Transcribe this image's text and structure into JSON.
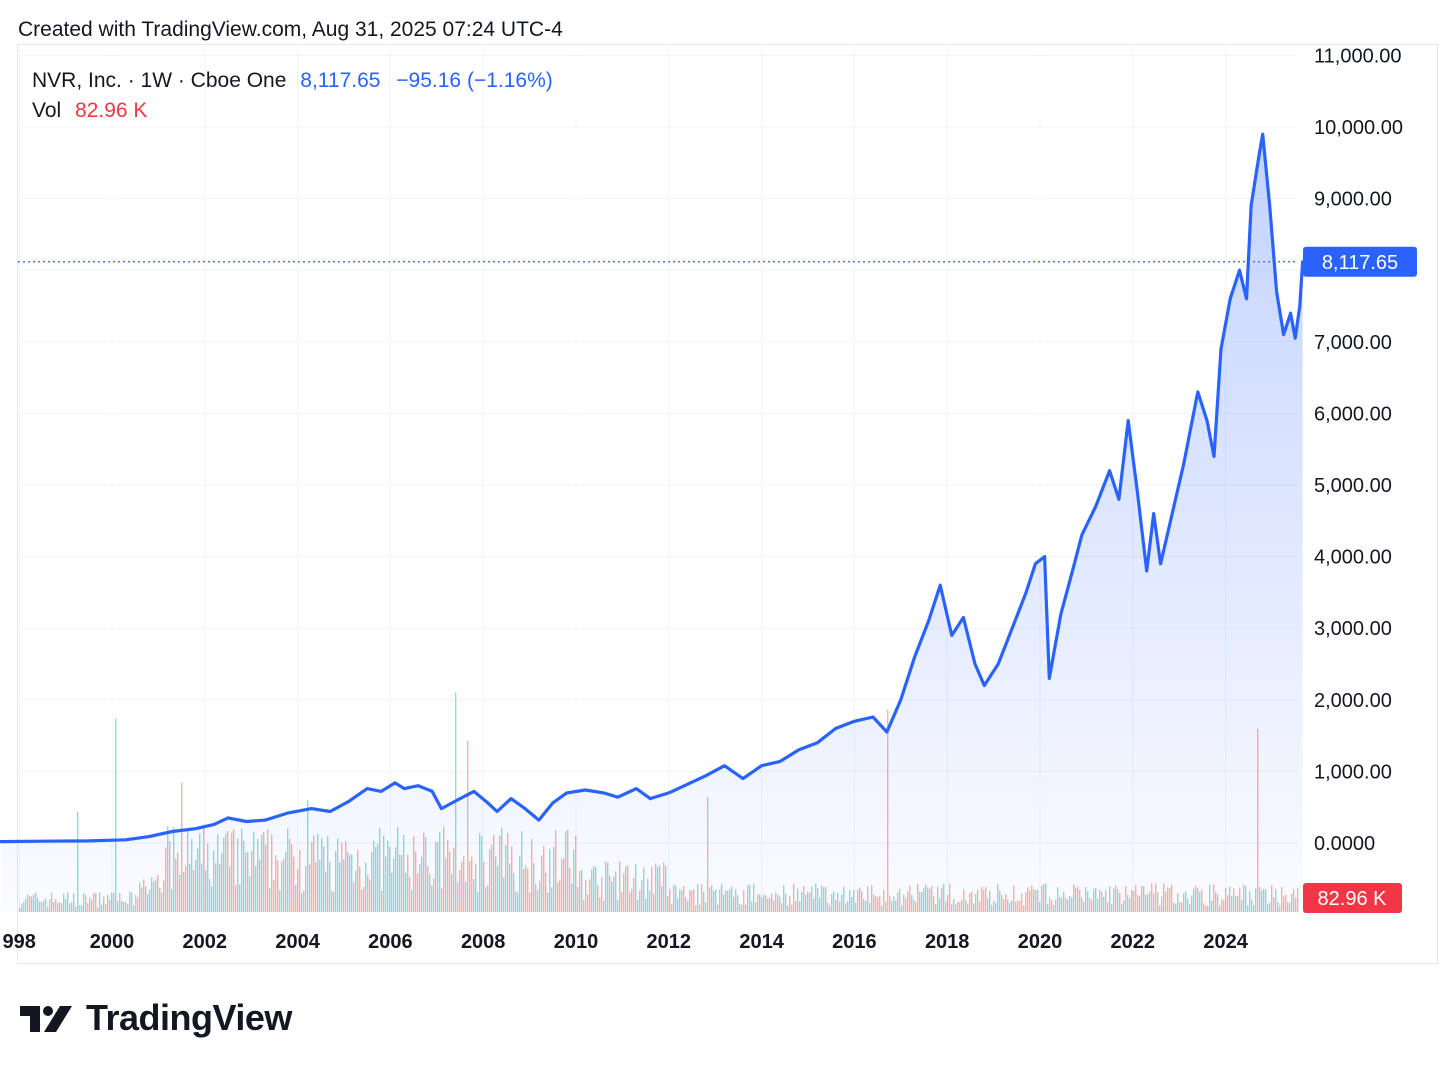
{
  "header": {
    "created_text": "Created with TradingView.com, Aug 31, 2025 07:24 UTC-4"
  },
  "legend": {
    "symbol": "NVR, Inc. · 1W · Cboe One",
    "last_price": "8,117.65",
    "change": "−95.16 (−1.16%)",
    "vol_label": "Vol",
    "vol_value": "82.96 K"
  },
  "brand": {
    "name": "TradingView"
  },
  "colors": {
    "line": "#2962ff",
    "vol_up": "#26a69a",
    "vol_down": "#ef5350",
    "price_tag": "#2962ff",
    "vol_tag": "#f23645"
  },
  "chart_data": {
    "type": "area",
    "x_unit": "year",
    "y_unit": "USD",
    "ylim": [
      0,
      11000
    ],
    "y_ticks": [
      "0.0000",
      "1,000.00",
      "2,000.00",
      "3,000.00",
      "4,000.00",
      "5,000.00",
      "6,000.00",
      "7,000.00",
      "8,000.00",
      "9,000.00",
      "10,000.00",
      "11,000.00"
    ],
    "x_ticks": [
      "998",
      "2000",
      "2002",
      "2004",
      "2006",
      "2008",
      "2010",
      "2012",
      "2014",
      "2016",
      "2018",
      "2020",
      "2022",
      "2024"
    ],
    "grid": true,
    "series": [
      {
        "values": [
          [
            1997.6,
            20
          ],
          [
            1998.5,
            25
          ],
          [
            1999.5,
            30
          ],
          [
            2000.3,
            45
          ],
          [
            2000.8,
            90
          ],
          [
            2001.3,
            160
          ],
          [
            2001.8,
            200
          ],
          [
            2002.2,
            260
          ],
          [
            2002.5,
            350
          ],
          [
            2002.9,
            300
          ],
          [
            2003.3,
            320
          ],
          [
            2003.8,
            420
          ],
          [
            2004.3,
            480
          ],
          [
            2004.7,
            440
          ],
          [
            2005.1,
            580
          ],
          [
            2005.5,
            760
          ],
          [
            2005.8,
            720
          ],
          [
            2006.1,
            840
          ],
          [
            2006.3,
            760
          ],
          [
            2006.6,
            800
          ],
          [
            2006.9,
            720
          ],
          [
            2007.1,
            480
          ],
          [
            2007.5,
            620
          ],
          [
            2007.8,
            720
          ],
          [
            2008.1,
            560
          ],
          [
            2008.3,
            440
          ],
          [
            2008.6,
            620
          ],
          [
            2008.9,
            480
          ],
          [
            2009.2,
            320
          ],
          [
            2009.5,
            560
          ],
          [
            2009.8,
            700
          ],
          [
            2010.2,
            740
          ],
          [
            2010.6,
            700
          ],
          [
            2010.9,
            640
          ],
          [
            2011.3,
            760
          ],
          [
            2011.6,
            620
          ],
          [
            2012.0,
            700
          ],
          [
            2012.4,
            820
          ],
          [
            2012.8,
            940
          ],
          [
            2013.2,
            1080
          ],
          [
            2013.6,
            900
          ],
          [
            2014.0,
            1080
          ],
          [
            2014.4,
            1140
          ],
          [
            2014.8,
            1300
          ],
          [
            2015.2,
            1400
          ],
          [
            2015.6,
            1600
          ],
          [
            2016.0,
            1700
          ],
          [
            2016.4,
            1760
          ],
          [
            2016.7,
            1550
          ],
          [
            2017.0,
            2000
          ],
          [
            2017.3,
            2600
          ],
          [
            2017.6,
            3100
          ],
          [
            2017.85,
            3600
          ],
          [
            2018.1,
            2900
          ],
          [
            2018.35,
            3150
          ],
          [
            2018.6,
            2500
          ],
          [
            2018.8,
            2200
          ],
          [
            2019.1,
            2500
          ],
          [
            2019.4,
            3000
          ],
          [
            2019.7,
            3500
          ],
          [
            2019.9,
            3900
          ],
          [
            2020.1,
            4000
          ],
          [
            2020.2,
            2300
          ],
          [
            2020.45,
            3200
          ],
          [
            2020.7,
            3800
          ],
          [
            2020.9,
            4300
          ],
          [
            2021.2,
            4700
          ],
          [
            2021.5,
            5200
          ],
          [
            2021.7,
            4800
          ],
          [
            2021.9,
            5900
          ],
          [
            2022.1,
            4900
          ],
          [
            2022.3,
            3800
          ],
          [
            2022.45,
            4600
          ],
          [
            2022.6,
            3900
          ],
          [
            2022.85,
            4600
          ],
          [
            2023.1,
            5300
          ],
          [
            2023.4,
            6300
          ],
          [
            2023.6,
            5900
          ],
          [
            2023.75,
            5400
          ],
          [
            2023.9,
            6900
          ],
          [
            2024.1,
            7600
          ],
          [
            2024.3,
            8000
          ],
          [
            2024.45,
            7600
          ],
          [
            2024.55,
            8900
          ],
          [
            2024.72,
            9600
          ],
          [
            2024.8,
            9900
          ],
          [
            2024.95,
            8900
          ],
          [
            2025.1,
            7700
          ],
          [
            2025.25,
            7100
          ],
          [
            2025.4,
            7400
          ],
          [
            2025.5,
            7050
          ],
          [
            2025.6,
            7500
          ],
          [
            2025.66,
            8117.65
          ]
        ]
      }
    ],
    "last_value": 8117.65,
    "volume": {
      "last": 82.96
    }
  }
}
